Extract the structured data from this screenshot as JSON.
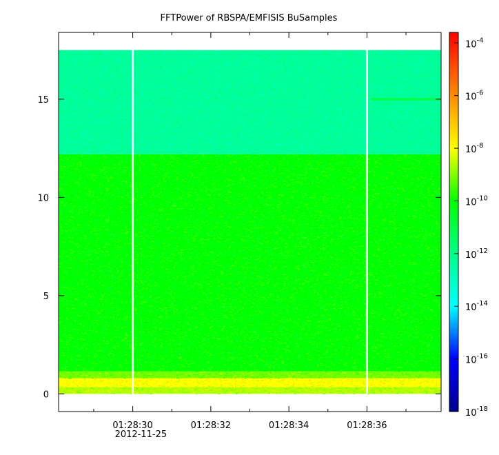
{
  "chart_data": {
    "type": "heatmap",
    "title": "FFTPower of RBSPA/EMFISIS  BuSamples",
    "xlabel": "",
    "ylabel": "",
    "x_axis": {
      "type": "time",
      "date_label": "2012-11-25",
      "range": [
        "01:28:28.1",
        "01:28:37.9"
      ],
      "tick_labels": [
        "01:28:30",
        "01:28:32",
        "01:28:34",
        "01:28:36"
      ],
      "tick_values_s": [
        30,
        32,
        34,
        36
      ],
      "minor_tick_values_s": [
        29,
        31,
        33,
        35,
        37
      ]
    },
    "y_axis": {
      "range": [
        -0.9,
        18.4
      ],
      "tick_values": [
        0,
        5,
        10,
        15
      ],
      "tick_labels": [
        "0",
        "5",
        "10",
        "15"
      ]
    },
    "data_region": {
      "x_range_s": [
        28.1,
        37.9
      ],
      "y_range": [
        0,
        17.5
      ]
    },
    "gaps_s": [
      30.0,
      36.0
    ],
    "bands": [
      {
        "y_from": 0,
        "y_to": 0.35,
        "level": -8.6
      },
      {
        "y_from": 0.35,
        "y_to": 0.8,
        "level": -8.0
      },
      {
        "y_from": 0.8,
        "y_to": 1.15,
        "level": -9.1
      },
      {
        "y_from": 1.15,
        "y_to": 12.2,
        "level": -10.0
      },
      {
        "y_from": 12.2,
        "y_to": 17.5,
        "level": -12.3
      }
    ],
    "features": [
      {
        "x_from": 36.1,
        "x_to": 37.9,
        "y": 15.0,
        "level": -10.9
      }
    ],
    "colorbar": {
      "scale": "log",
      "range": [
        -18,
        -3.6
      ],
      "tick_exponents": [
        -4,
        -6,
        -8,
        -10,
        -12,
        -14,
        -16,
        -18
      ],
      "tick_base": "10",
      "stops": [
        {
          "value": -18,
          "color": "#00008f"
        },
        {
          "value": -16,
          "color": "#0000ff"
        },
        {
          "value": -14,
          "color": "#00ffff"
        },
        {
          "value": -12,
          "color": "#00ff88"
        },
        {
          "value": -10,
          "color": "#00ff00"
        },
        {
          "value": -8,
          "color": "#ffff00"
        },
        {
          "value": -6,
          "color": "#ff8c00"
        },
        {
          "value": -3.6,
          "color": "#ff0000"
        }
      ]
    },
    "grid": false,
    "legend": "none"
  }
}
